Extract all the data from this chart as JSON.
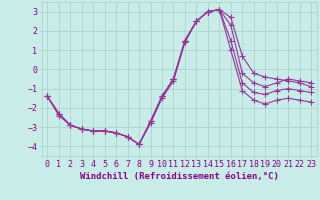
{
  "xlabel": "Windchill (Refroidissement éolien,°C)",
  "background_color": "#c8ede8",
  "grid_color": "#a8cec8",
  "line_color": "#993399",
  "xlim": [
    -0.5,
    23.5
  ],
  "ylim": [
    -4.5,
    3.5
  ],
  "yticks": [
    -4,
    -3,
    -2,
    -1,
    0,
    1,
    2,
    3
  ],
  "xticks": [
    0,
    1,
    2,
    3,
    4,
    5,
    6,
    7,
    8,
    9,
    10,
    11,
    12,
    13,
    14,
    15,
    16,
    17,
    18,
    19,
    20,
    21,
    22,
    23
  ],
  "x": [
    0,
    1,
    2,
    3,
    4,
    5,
    6,
    7,
    8,
    9,
    10,
    11,
    12,
    13,
    14,
    15,
    16,
    17,
    18,
    19,
    20,
    21,
    22,
    23
  ],
  "line1": [
    -1.4,
    -2.4,
    -2.9,
    -3.1,
    -3.2,
    -3.2,
    -3.3,
    -3.5,
    -3.9,
    -2.8,
    -1.5,
    -0.6,
    1.4,
    2.5,
    3.0,
    3.1,
    2.7,
    0.7,
    -0.2,
    -0.4,
    -0.5,
    -0.6,
    -0.7,
    -0.9
  ],
  "line2": [
    -1.4,
    -2.3,
    -2.9,
    -3.1,
    -3.2,
    -3.2,
    -3.3,
    -3.5,
    -3.9,
    -2.7,
    -1.4,
    -0.5,
    1.5,
    2.5,
    3.0,
    3.1,
    2.3,
    -0.2,
    -0.7,
    -0.9,
    -0.7,
    -0.5,
    -0.6,
    -0.7
  ],
  "line3": [
    -1.4,
    -2.3,
    -2.9,
    -3.1,
    -3.2,
    -3.2,
    -3.3,
    -3.5,
    -3.9,
    -2.7,
    -1.4,
    -0.5,
    1.5,
    2.5,
    3.0,
    3.1,
    1.5,
    -0.7,
    -1.2,
    -1.3,
    -1.1,
    -1.0,
    -1.1,
    -1.2
  ],
  "line4": [
    -1.4,
    -2.3,
    -2.9,
    -3.1,
    -3.2,
    -3.2,
    -3.3,
    -3.5,
    -3.9,
    -2.7,
    -1.4,
    -0.5,
    1.5,
    2.5,
    3.0,
    3.1,
    1.0,
    -1.1,
    -1.6,
    -1.8,
    -1.6,
    -1.5,
    -1.6,
    -1.7
  ],
  "marker": "+",
  "marker_size": 4,
  "line_width": 0.8,
  "tick_fontsize": 6,
  "label_fontsize": 6.5,
  "tick_label_color": "#880088",
  "label_color": "#880088"
}
